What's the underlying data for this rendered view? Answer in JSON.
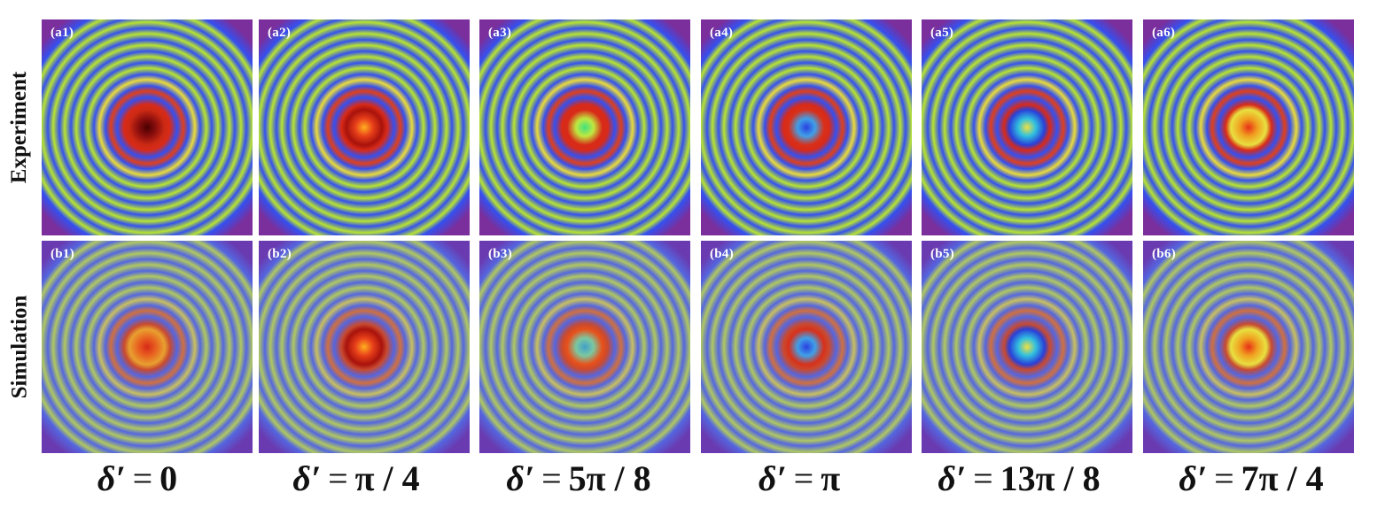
{
  "row_labels": {
    "experiment": "Experiment",
    "simulation": "Simulation"
  },
  "panels": [
    {
      "tag": "(a1)",
      "row": "experiment",
      "col": 0,
      "center": "dark-red",
      "intensity": "strong"
    },
    {
      "tag": "(a2)",
      "row": "experiment",
      "col": 1,
      "center": "red-orange",
      "intensity": "strong"
    },
    {
      "tag": "(a3)",
      "row": "experiment",
      "col": 2,
      "center": "green",
      "intensity": "strong"
    },
    {
      "tag": "(a4)",
      "row": "experiment",
      "col": 3,
      "center": "blue",
      "intensity": "strong"
    },
    {
      "tag": "(a5)",
      "row": "experiment",
      "col": 4,
      "center": "yellow",
      "intensity": "strong"
    },
    {
      "tag": "(a6)",
      "row": "experiment",
      "col": 5,
      "center": "orange",
      "intensity": "strong"
    },
    {
      "tag": "(b1)",
      "row": "simulation",
      "col": 0,
      "center": "red",
      "intensity": "soft"
    },
    {
      "tag": "(b2)",
      "row": "simulation",
      "col": 1,
      "center": "red-orange",
      "intensity": "soft"
    },
    {
      "tag": "(b3)",
      "row": "simulation",
      "col": 2,
      "center": "cyan",
      "intensity": "soft"
    },
    {
      "tag": "(b4)",
      "row": "simulation",
      "col": 3,
      "center": "blue",
      "intensity": "soft"
    },
    {
      "tag": "(b5)",
      "row": "simulation",
      "col": 4,
      "center": "yellow",
      "intensity": "soft"
    },
    {
      "tag": "(b6)",
      "row": "simulation",
      "col": 5,
      "center": "orange",
      "intensity": "soft"
    }
  ],
  "captions": [
    {
      "symbol": "δ′",
      "eq": "=",
      "value": "0"
    },
    {
      "symbol": "δ′",
      "eq": "=",
      "value": "π / 4"
    },
    {
      "symbol": "δ′",
      "eq": "=",
      "value": "5π / 8"
    },
    {
      "symbol": "δ′",
      "eq": "=",
      "value": "π"
    },
    {
      "symbol": "δ′",
      "eq": "=",
      "value": "13π / 8"
    },
    {
      "symbol": "δ′",
      "eq": "=",
      "value": "7π / 4"
    }
  ],
  "colors": {
    "background": "#7a2f9c",
    "ring_blue": "#3b4fe0",
    "ring_green": "#b8e030",
    "ring_yellow": "#e8e040",
    "ring_red": "#d8281a",
    "dark_red": "#6a0a0a"
  }
}
